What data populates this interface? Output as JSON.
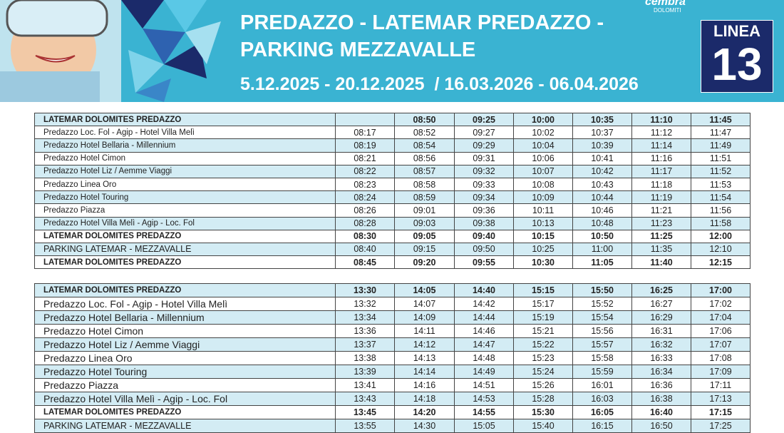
{
  "header": {
    "title_lines": [
      "PREDAZZO - LATEMAR PREDAZZO -",
      "PARKING MEZZAVALLE"
    ],
    "dates": "5.12.2025 - 20.12.2025  / 16.03.2026 - 06.04.2026",
    "line_label": "LINEA",
    "line_number": "13",
    "logo": {
      "name": "cembra",
      "sub": "DOLOMITI"
    }
  },
  "tables": [
    {
      "rows": [
        {
          "bold": true,
          "cells": [
            "LATEMAR DOLOMITES PREDAZZO",
            null,
            "08:50",
            "09:25",
            "10:00",
            "10:35",
            "11:10",
            "11:45"
          ]
        },
        {
          "bold": false,
          "cells": [
            "Predazzo Loc. Fol - Agip - Hotel Villa Melì",
            "08:17",
            "08:52",
            "09:27",
            "10:02",
            "10:37",
            "11:12",
            "11:47"
          ]
        },
        {
          "bold": false,
          "cells": [
            "Predazzo Hotel Bellaria - Millennium",
            "08:19",
            "08:54",
            "09:29",
            "10:04",
            "10:39",
            "11:14",
            "11:49"
          ]
        },
        {
          "bold": false,
          "cells": [
            "Predazzo Hotel Cimon",
            "08:21",
            "08:56",
            "09:31",
            "10:06",
            "10:41",
            "11:16",
            "11:51"
          ]
        },
        {
          "bold": false,
          "cells": [
            "Predazzo Hotel Liz / Aemme Viaggi",
            "08:22",
            "08:57",
            "09:32",
            "10:07",
            "10:42",
            "11:17",
            "11:52"
          ]
        },
        {
          "bold": false,
          "cells": [
            "Predazzo Linea Oro",
            "08:23",
            "08:58",
            "09:33",
            "10:08",
            "10:43",
            "11:18",
            "11:53"
          ]
        },
        {
          "bold": false,
          "cells": [
            "Predazzo Hotel Touring",
            "08:24",
            "08:59",
            "09:34",
            "10:09",
            "10:44",
            "11:19",
            "11:54"
          ]
        },
        {
          "bold": false,
          "cells": [
            "Predazzo Piazza",
            "08:26",
            "09:01",
            "09:36",
            "10:11",
            "10:46",
            "11:21",
            "11:56"
          ]
        },
        {
          "bold": false,
          "cells": [
            "Predazzo Hotel Villa Melì - Agip - Loc. Fol",
            "08:28",
            "09:03",
            "09:38",
            "10:13",
            "10:48",
            "11:23",
            "11:58"
          ]
        },
        {
          "bold": true,
          "cells": [
            "LATEMAR DOLOMITES PREDAZZO",
            "08:30",
            "09:05",
            "09:40",
            "10:15",
            "10:50",
            "11:25",
            "12:00"
          ]
        },
        {
          "bold": false,
          "cells": [
            "PARKING LATEMAR - MEZZAVALLE",
            "08:40",
            "09:15",
            "09:50",
            "10:25",
            "11:00",
            "11:35",
            "12:10"
          ]
        },
        {
          "bold": true,
          "cells": [
            "LATEMAR DOLOMITES PREDAZZO",
            "08:45",
            "09:20",
            "09:55",
            "10:30",
            "11:05",
            "11:40",
            "12:15"
          ]
        }
      ]
    },
    {
      "rows": [
        {
          "bold": true,
          "cells": [
            "LATEMAR DOLOMITES PREDAZZO",
            "13:30",
            "14:05",
            "14:40",
            "15:15",
            "15:50",
            "16:25",
            "17:00"
          ]
        },
        {
          "bold": false,
          "cells": [
            "Predazzo Loc. Fol - Agip - Hotel Villa Melì",
            "13:32",
            "14:07",
            "14:42",
            "15:17",
            "15:52",
            "16:27",
            "17:02"
          ]
        },
        {
          "bold": false,
          "cells": [
            "Predazzo Hotel Bellaria - Millennium",
            "13:34",
            "14:09",
            "14:44",
            "15:19",
            "15:54",
            "16:29",
            "17:04"
          ]
        },
        {
          "bold": false,
          "cells": [
            "Predazzo Hotel Cimon",
            "13:36",
            "14:11",
            "14:46",
            "15:21",
            "15:56",
            "16:31",
            "17:06"
          ]
        },
        {
          "bold": false,
          "cells": [
            "Predazzo Hotel Liz / Aemme Viaggi",
            "13:37",
            "14:12",
            "14:47",
            "15:22",
            "15:57",
            "16:32",
            "17:07"
          ]
        },
        {
          "bold": false,
          "cells": [
            "Predazzo Linea Oro",
            "13:38",
            "14:13",
            "14:48",
            "15:23",
            "15:58",
            "16:33",
            "17:08"
          ]
        },
        {
          "bold": false,
          "cells": [
            "Predazzo Hotel Touring",
            "13:39",
            "14:14",
            "14:49",
            "15:24",
            "15:59",
            "16:34",
            "17:09"
          ]
        },
        {
          "bold": false,
          "cells": [
            "Predazzo Piazza",
            "13:41",
            "14:16",
            "14:51",
            "15:26",
            "16:01",
            "16:36",
            "17:11"
          ]
        },
        {
          "bold": false,
          "cells": [
            "Predazzo Hotel Villa Melì - Agip - Loc. Fol",
            "13:43",
            "14:18",
            "14:53",
            "15:28",
            "16:03",
            "16:38",
            "17:13"
          ]
        },
        {
          "bold": true,
          "cells": [
            "LATEMAR DOLOMITES PREDAZZO",
            "13:45",
            "14:20",
            "14:55",
            "15:30",
            "16:05",
            "16:40",
            "17:15"
          ]
        },
        {
          "bold": false,
          "cells": [
            "PARKING LATEMAR - MEZZAVALLE",
            "13:55",
            "14:30",
            "15:05",
            "15:40",
            "16:15",
            "16:50",
            "17:25"
          ]
        }
      ]
    }
  ]
}
